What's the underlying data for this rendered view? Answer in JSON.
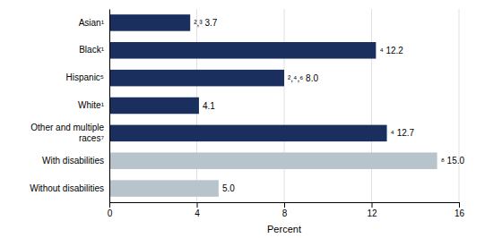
{
  "chart_data": {
    "type": "bar",
    "orientation": "horizontal",
    "categories": [
      "Without disabilities",
      "With disabilities",
      "Other and multiple\nraces⁷",
      "White¹",
      "Hispanic⁵",
      "Black¹",
      "Asian¹"
    ],
    "values": [
      5.0,
      15.0,
      12.7,
      4.1,
      8.0,
      12.2,
      3.7
    ],
    "value_labels": [
      "5.0",
      "⁸ 15.0",
      "⁴ 12.7",
      "4.1",
      "²,⁴,⁶ 8.0",
      "⁴ 12.2",
      "²,³ 3.7"
    ],
    "colors": [
      "#b8c4cc",
      "#b8c4cc",
      "#1b2f5e",
      "#1b2f5e",
      "#1b2f5e",
      "#1b2f5e",
      "#1b2f5e"
    ],
    "x_label": "Percent",
    "xlim": [
      0,
      16
    ],
    "xticks": [
      0,
      4,
      8,
      12,
      16
    ],
    "grid": true,
    "data_labels": true
  }
}
